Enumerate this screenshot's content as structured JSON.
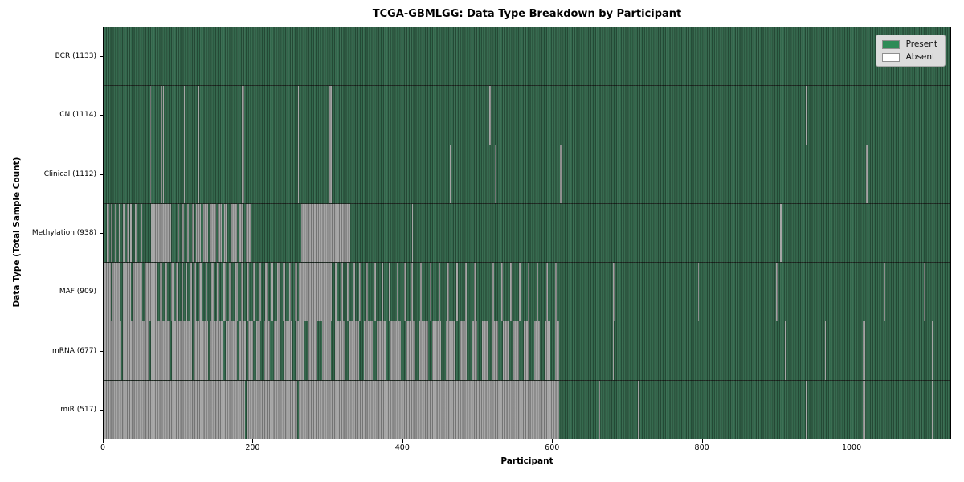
{
  "chart_data": {
    "type": "heatmap",
    "title": "TCGA-GBMLGG: Data Type Breakdown by Participant",
    "xlabel": "Participant",
    "ylabel": "Data Type (Total Sample Count)",
    "xlim": [
      0,
      1133
    ],
    "x_ticks": [
      0,
      200,
      400,
      600,
      800,
      1000
    ],
    "grid": false,
    "legend": {
      "position": "upper right",
      "entries": [
        {
          "label": "Present",
          "color": "#2e8b57"
        },
        {
          "label": "Absent",
          "color": "#ffffff"
        }
      ]
    },
    "colors": {
      "present_render": "#33684c",
      "absent_render": "#a6a6a6",
      "legend_bg": "#dcdcdc",
      "legend_border": "#a9a9a9"
    },
    "rows": [
      {
        "key": "bcr",
        "label": "BCR (1133)",
        "present_count": 1133,
        "absent_count": 0,
        "absent_segments": []
      },
      {
        "key": "cn",
        "label": "CN (1114)",
        "present_count": 1114,
        "absent_count": 19,
        "absent_segments": [
          [
            62,
            63
          ],
          [
            77,
            78
          ],
          [
            80,
            81
          ],
          [
            107,
            108
          ],
          [
            127,
            128
          ],
          [
            185,
            188
          ],
          [
            260,
            261
          ],
          [
            302,
            305
          ],
          [
            516,
            518
          ],
          [
            940,
            942
          ]
        ]
      },
      {
        "key": "clinical",
        "label": "Clinical (1112)",
        "present_count": 1112,
        "absent_count": 21,
        "absent_segments": [
          [
            62,
            63
          ],
          [
            77,
            78
          ],
          [
            80,
            81
          ],
          [
            107,
            108
          ],
          [
            127,
            128
          ],
          [
            185,
            188
          ],
          [
            260,
            261
          ],
          [
            302,
            305
          ],
          [
            463,
            464
          ],
          [
            524,
            525
          ],
          [
            611,
            613
          ],
          [
            1020,
            1022
          ]
        ]
      },
      {
        "key": "methylation",
        "label": "Methylation (938)",
        "present_count": 938,
        "absent_count": 195,
        "absent_segments": [
          [
            4,
            7
          ],
          [
            10,
            12
          ],
          [
            15,
            17
          ],
          [
            20,
            22
          ],
          [
            26,
            28
          ],
          [
            31,
            33
          ],
          [
            36,
            38
          ],
          [
            42,
            44
          ],
          [
            50,
            52
          ],
          [
            63,
            90
          ],
          [
            93,
            95
          ],
          [
            99,
            101
          ],
          [
            105,
            107
          ],
          [
            112,
            114
          ],
          [
            118,
            120
          ],
          [
            124,
            130
          ],
          [
            133,
            140
          ],
          [
            143,
            150
          ],
          [
            153,
            158
          ],
          [
            161,
            166
          ],
          [
            170,
            178
          ],
          [
            181,
            186
          ],
          [
            190,
            198
          ],
          [
            264,
            330
          ],
          [
            413,
            414
          ],
          [
            905,
            907
          ]
        ]
      },
      {
        "key": "maf",
        "label": "MAF (909)",
        "present_count": 909,
        "absent_count": 224,
        "absent_segments": [
          [
            0,
            10
          ],
          [
            12,
            23
          ],
          [
            26,
            37
          ],
          [
            39,
            52
          ],
          [
            55,
            72
          ],
          [
            75,
            78
          ],
          [
            82,
            85
          ],
          [
            90,
            93
          ],
          [
            97,
            99
          ],
          [
            104,
            106
          ],
          [
            110,
            112
          ],
          [
            116,
            118
          ],
          [
            121,
            124
          ],
          [
            128,
            131
          ],
          [
            136,
            139
          ],
          [
            144,
            147
          ],
          [
            152,
            155
          ],
          [
            160,
            163
          ],
          [
            168,
            171
          ],
          [
            176,
            179
          ],
          [
            184,
            187
          ],
          [
            192,
            195
          ],
          [
            200,
            203
          ],
          [
            208,
            211
          ],
          [
            216,
            219
          ],
          [
            224,
            227
          ],
          [
            232,
            235
          ],
          [
            240,
            243
          ],
          [
            248,
            251
          ],
          [
            256,
            259
          ],
          [
            261,
            305
          ],
          [
            310,
            312
          ],
          [
            318,
            320
          ],
          [
            326,
            328
          ],
          [
            334,
            336
          ],
          [
            342,
            344
          ],
          [
            352,
            354
          ],
          [
            362,
            364
          ],
          [
            372,
            374
          ],
          [
            382,
            384
          ],
          [
            392,
            394
          ],
          [
            402,
            404
          ],
          [
            412,
            414
          ],
          [
            424,
            426
          ],
          [
            436,
            438
          ],
          [
            448,
            450
          ],
          [
            460,
            462
          ],
          [
            472,
            474
          ],
          [
            484,
            486
          ],
          [
            496,
            498
          ],
          [
            508,
            510
          ],
          [
            520,
            522
          ],
          [
            532,
            534
          ],
          [
            544,
            546
          ],
          [
            556,
            558
          ],
          [
            568,
            570
          ],
          [
            580,
            582
          ],
          [
            592,
            594
          ],
          [
            604,
            606
          ],
          [
            682,
            684
          ],
          [
            795,
            797
          ],
          [
            900,
            902
          ],
          [
            1044,
            1046
          ],
          [
            1098,
            1100
          ]
        ]
      },
      {
        "key": "mrna",
        "label": "mRNA (677)",
        "present_count": 677,
        "absent_count": 456,
        "absent_segments": [
          [
            0,
            24
          ],
          [
            26,
            60
          ],
          [
            63,
            88
          ],
          [
            91,
            118
          ],
          [
            121,
            140
          ],
          [
            143,
            160
          ],
          [
            163,
            178
          ],
          [
            182,
            190
          ],
          [
            194,
            200
          ],
          [
            204,
            210
          ],
          [
            215,
            222
          ],
          [
            228,
            236
          ],
          [
            242,
            252
          ],
          [
            258,
            268
          ],
          [
            274,
            286
          ],
          [
            292,
            304
          ],
          [
            310,
            322
          ],
          [
            328,
            342
          ],
          [
            348,
            360
          ],
          [
            366,
            378
          ],
          [
            384,
            398
          ],
          [
            404,
            416
          ],
          [
            422,
            434
          ],
          [
            440,
            452
          ],
          [
            458,
            470
          ],
          [
            476,
            486
          ],
          [
            492,
            500
          ],
          [
            506,
            514
          ],
          [
            520,
            528
          ],
          [
            534,
            542
          ],
          [
            548,
            556
          ],
          [
            562,
            570
          ],
          [
            576,
            584
          ],
          [
            590,
            598
          ],
          [
            604,
            610
          ],
          [
            682,
            683
          ],
          [
            912,
            913
          ],
          [
            965,
            966
          ],
          [
            1016,
            1019
          ],
          [
            1108,
            1109
          ]
        ]
      },
      {
        "key": "mir",
        "label": "miR (517)",
        "present_count": 517,
        "absent_count": 616,
        "absent_segments": [
          [
            0,
            189
          ],
          [
            191,
            259
          ],
          [
            261,
            609
          ],
          [
            663,
            664
          ],
          [
            715,
            716
          ],
          [
            940,
            941
          ],
          [
            1016,
            1019
          ],
          [
            1108,
            1109
          ]
        ]
      }
    ]
  }
}
